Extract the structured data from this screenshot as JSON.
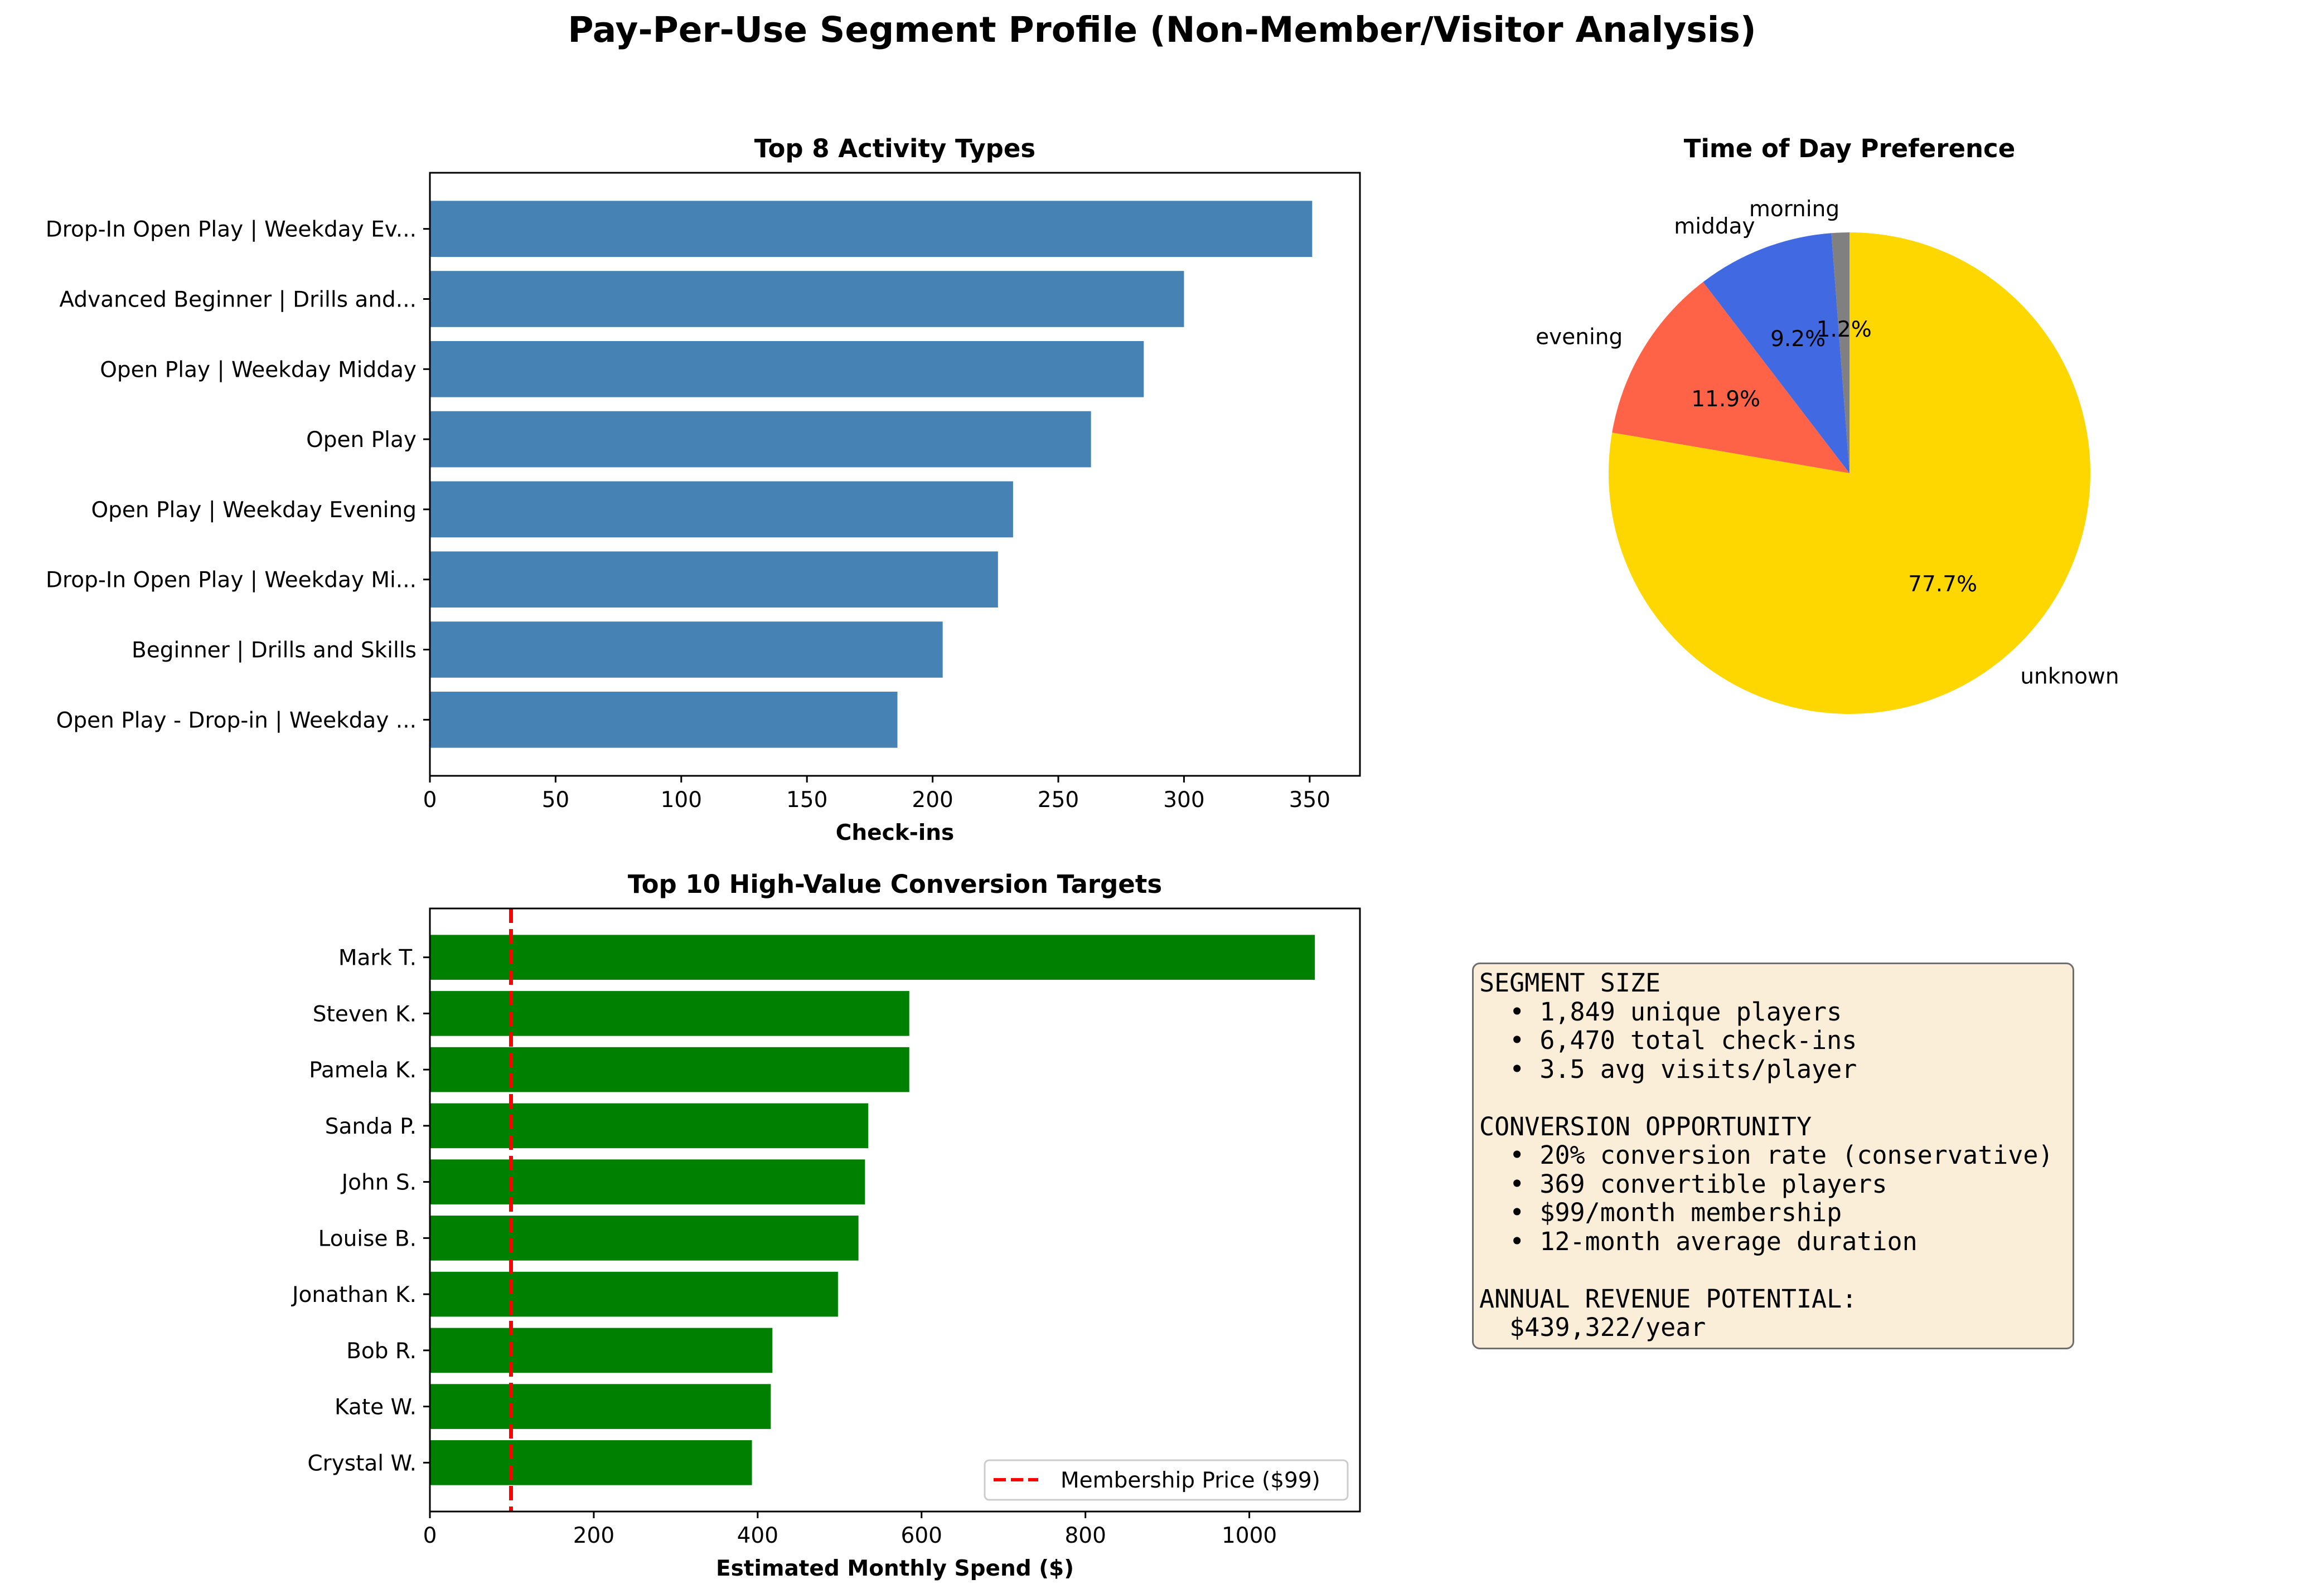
{
  "suptitle": "Pay-Per-Use Segment Profile (Non-Member/Visitor Analysis)",
  "colors": {
    "activity_bar": "#4682b4",
    "target_bar": "#008000",
    "membership_line": "#ff0000",
    "summary_box_bg": "#f5deb3"
  },
  "chart_data": [
    {
      "id": "activity",
      "type": "bar",
      "orientation": "horizontal",
      "title": "Top 8 Activity Types",
      "xlabel": "Check-ins",
      "ylabel": "",
      "xlim": [
        0,
        370
      ],
      "xticks": [
        0,
        50,
        100,
        150,
        200,
        250,
        300,
        350
      ],
      "grid": false,
      "categories": [
        "Drop-In Open Play | Weekday Ev...",
        "Advanced Beginner | Drills and...",
        "Open Play | Weekday Midday",
        "Open Play",
        "Open Play | Weekday Evening",
        "Drop-In Open Play | Weekday Mi...",
        "Beginner | Drills and Skills",
        "Open Play - Drop-in | Weekday ..."
      ],
      "values": [
        351,
        300,
        284,
        263,
        232,
        226,
        204,
        186
      ]
    },
    {
      "id": "timeofday",
      "type": "pie",
      "title": "Time of Day Preference",
      "labels": [
        "unknown",
        "evening",
        "midday",
        "morning"
      ],
      "percent_labels": [
        "77.7%",
        "11.9%",
        "9.2%",
        "1.2%"
      ],
      "values": [
        77.7,
        11.9,
        9.2,
        1.2
      ],
      "colors": [
        "#ffd700",
        "#ff6347",
        "#4169e1",
        "#808080"
      ]
    },
    {
      "id": "targets",
      "type": "bar",
      "orientation": "horizontal",
      "title": "Top 10 High-Value Conversion Targets",
      "xlabel": "Estimated Monthly Spend ($)",
      "ylabel": "",
      "xlim": [
        0,
        1135
      ],
      "xticks": [
        0,
        200,
        400,
        600,
        800,
        1000
      ],
      "grid": false,
      "categories": [
        "Mark T.",
        "Steven K.",
        "Pamela K.",
        "Sanda P.",
        "John S.",
        "Louise B.",
        "Jonathan K.",
        "Bob R.",
        "Kate W.",
        "Crystal W."
      ],
      "values": [
        1080,
        585,
        585,
        535,
        531,
        523,
        498,
        418,
        416,
        393
      ],
      "reference_line": {
        "value": 99,
        "label": "Membership Price ($99)",
        "style": "dashed"
      },
      "legend_position": "lower-right"
    }
  ],
  "summary": {
    "lines": [
      "SEGMENT SIZE",
      "  • 1,849 unique players",
      "  • 6,470 total check-ins",
      "  • 3.5 avg visits/player",
      "",
      "CONVERSION OPPORTUNITY",
      "  • 20% conversion rate (conservative)",
      "  • 369 convertible players",
      "  • $99/month membership",
      "  • 12-month average duration",
      "",
      "ANNUAL REVENUE POTENTIAL:",
      "  $439,322/year"
    ]
  }
}
